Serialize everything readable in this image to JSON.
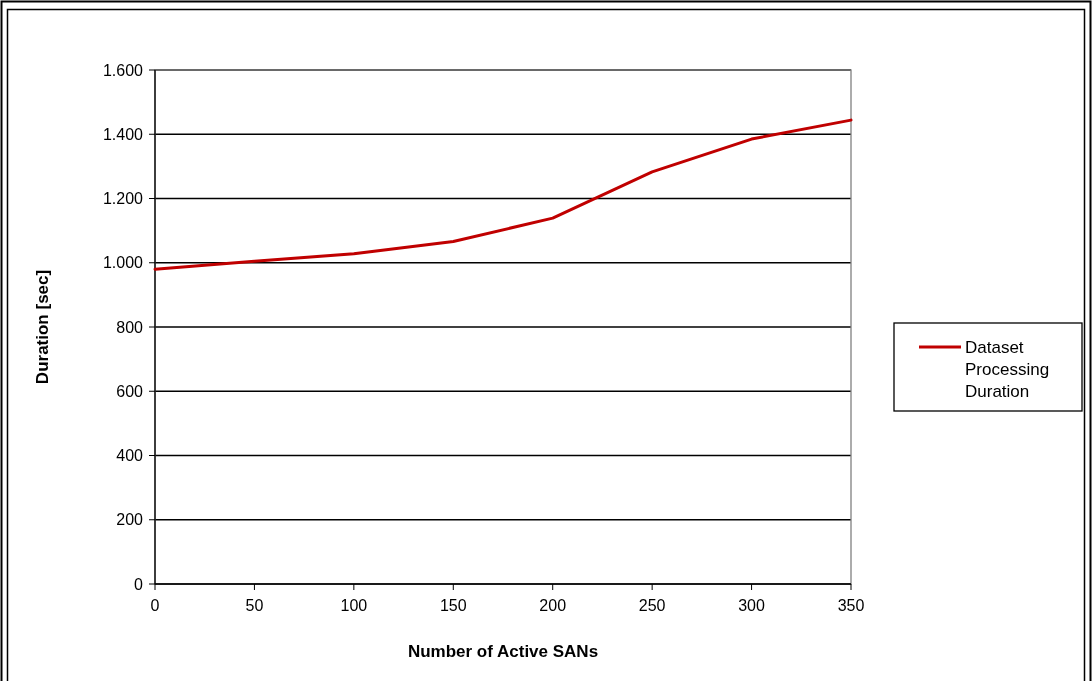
{
  "chart_data": {
    "type": "line",
    "xlabel": "Number of Active  SANs",
    "ylabel": "Duration [sec]",
    "x": [
      0,
      50,
      100,
      150,
      200,
      250,
      300,
      350
    ],
    "series": [
      {
        "name": "Dataset Processing Duration",
        "color": "#c00000",
        "values": [
          980,
          1005,
          1028,
          1066,
          1139,
          1283,
          1385,
          1444
        ]
      }
    ],
    "xlim": [
      0,
      350
    ],
    "xticks": [
      0,
      50,
      100,
      150,
      200,
      250,
      300,
      350
    ],
    "ylim": [
      0,
      1600
    ],
    "yticks": [
      0,
      200,
      400,
      600,
      800,
      {
        "value": 1000,
        "label": "1.000"
      },
      {
        "value": 1200,
        "label": "1.200"
      },
      {
        "value": 1400,
        "label": "1.400"
      },
      {
        "value": 1600,
        "label": "1.600"
      }
    ],
    "grid": "y",
    "legend": "right",
    "marker": "none",
    "line_style": "solid"
  }
}
